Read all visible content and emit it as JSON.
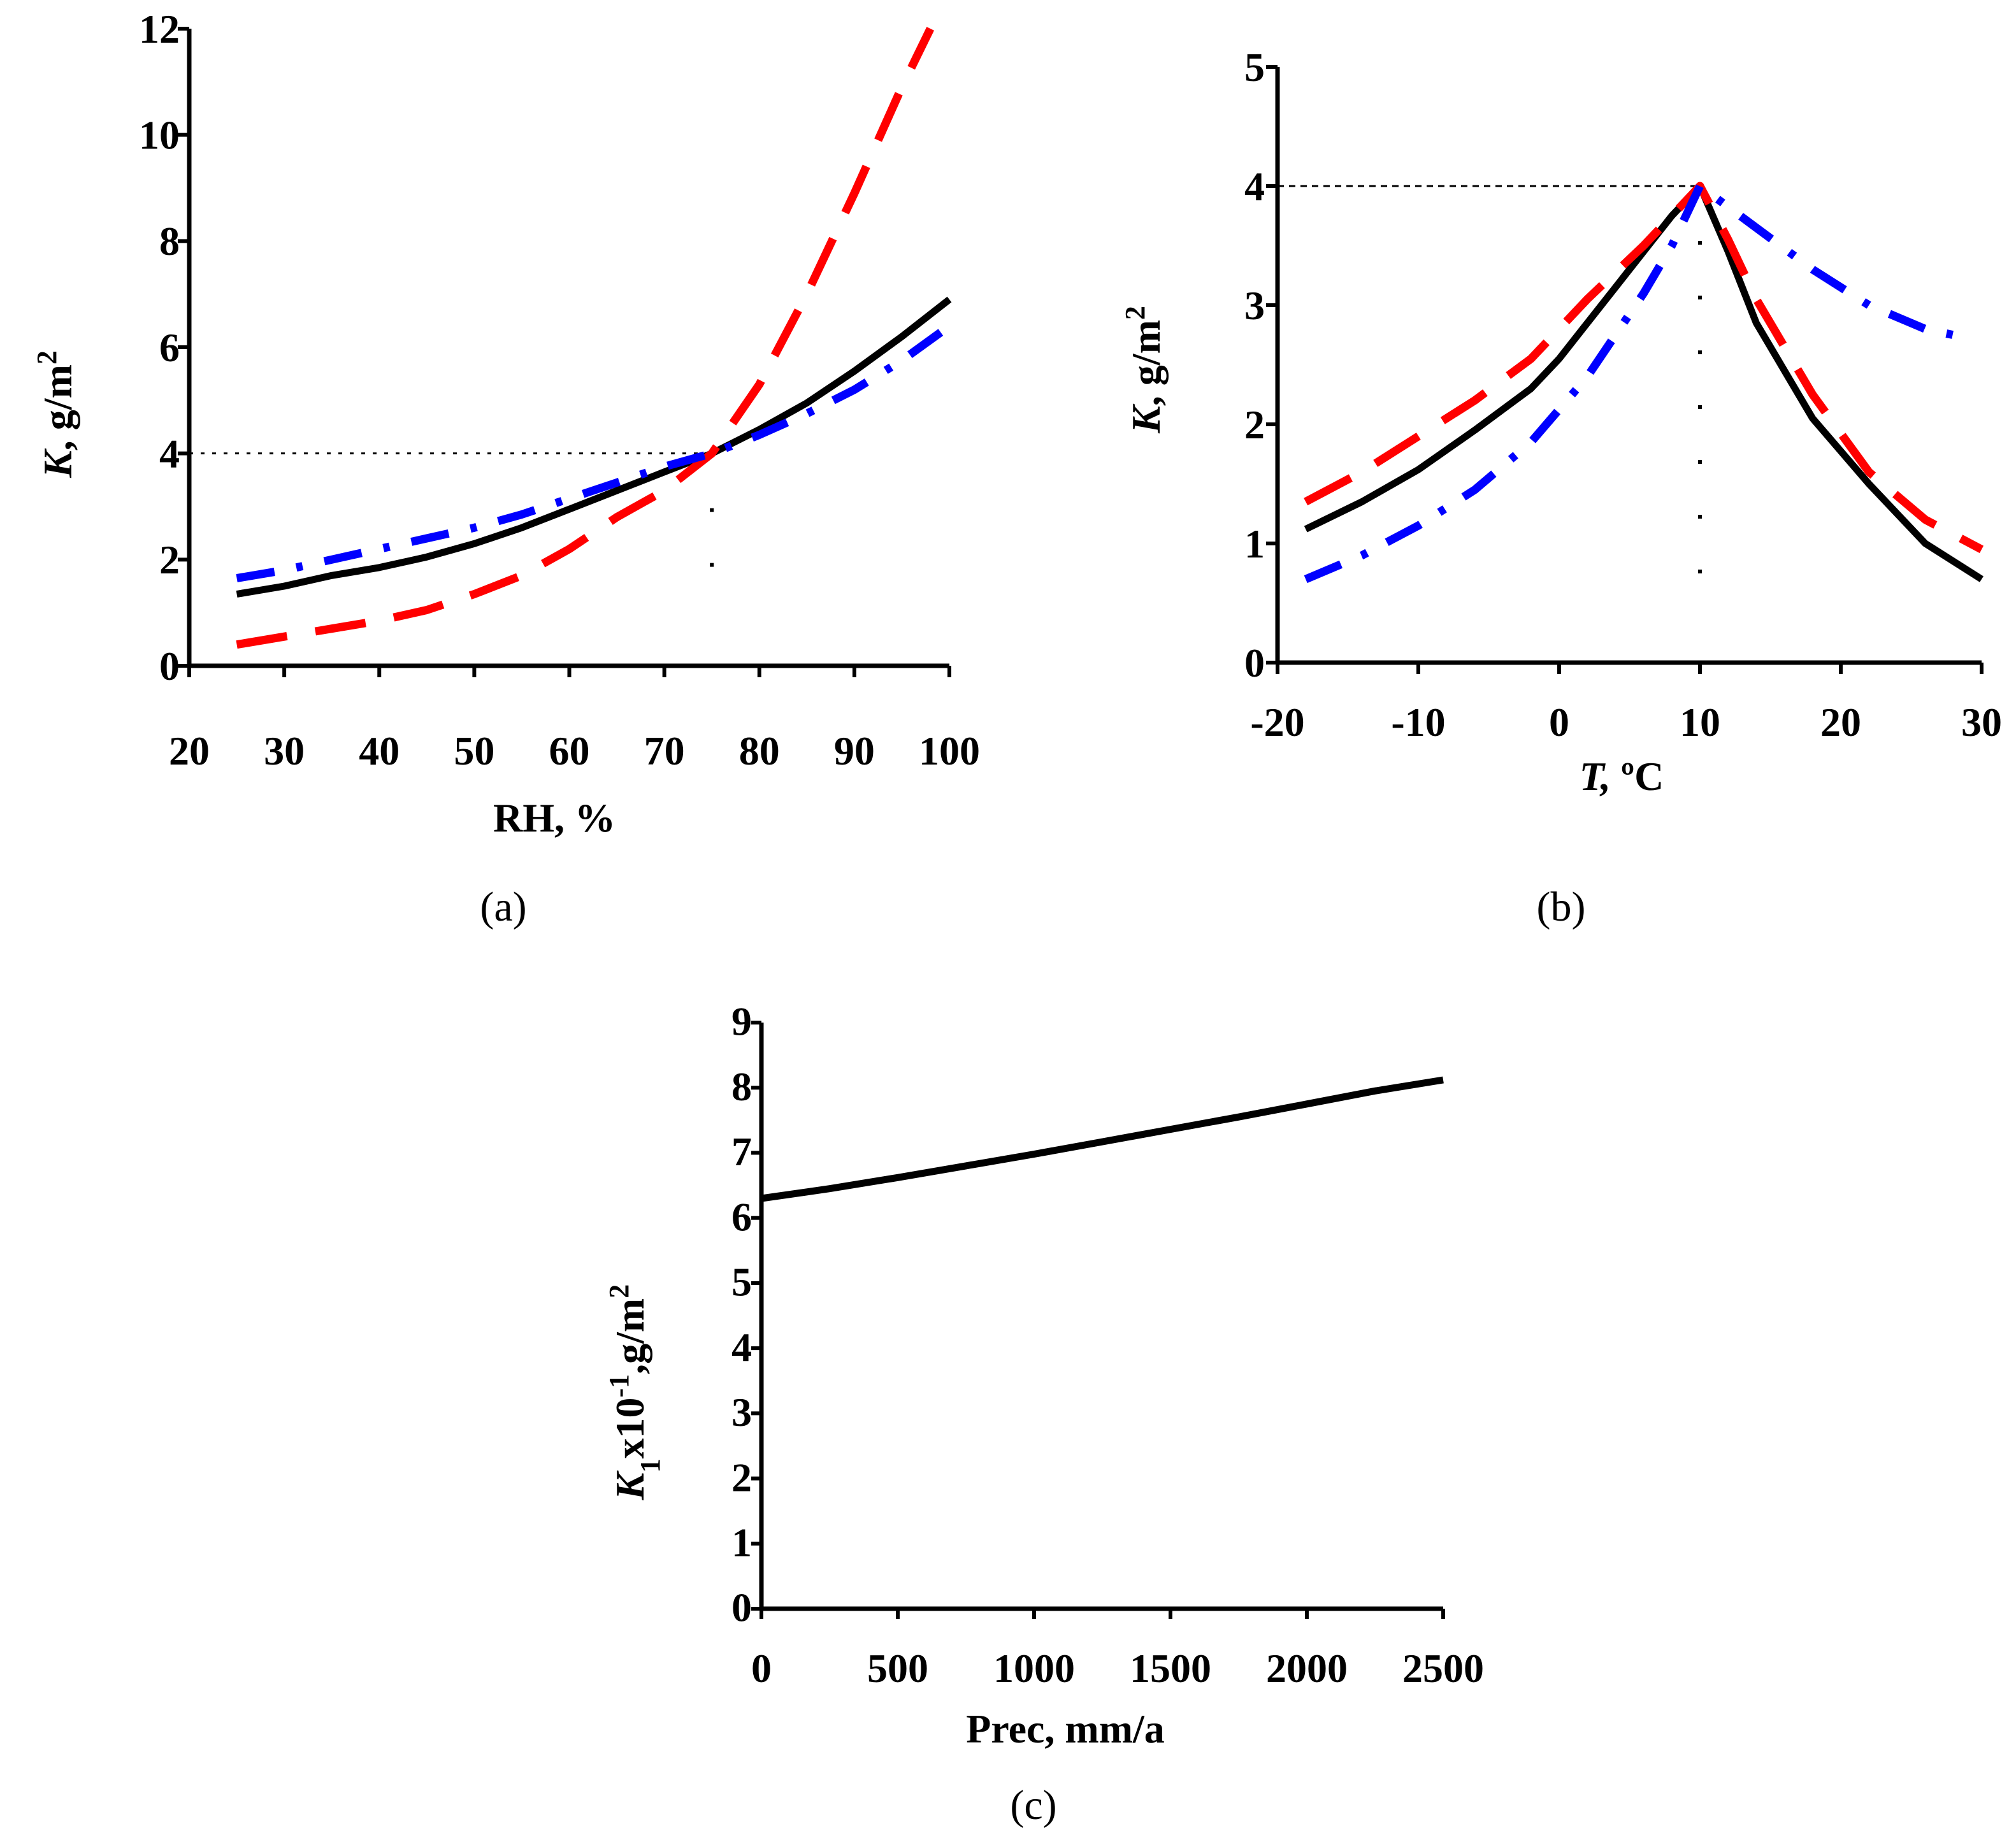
{
  "chart_data": [
    {
      "id": "a",
      "type": "line",
      "panel_label": "(a)",
      "xlabel": "RH, %",
      "ylabel_var": "K",
      "ylabel_unit": ", g/m",
      "ylabel_sup": "2",
      "xlim": [
        20,
        100
      ],
      "ylim": [
        0,
        12
      ],
      "xticks": [
        "20",
        "30",
        "40",
        "50",
        "60",
        "70",
        "80",
        "90",
        "100"
      ],
      "yticks": [
        "0",
        "2",
        "4",
        "6",
        "8",
        "10",
        "12"
      ],
      "reference_value": 4,
      "reference_x": 75,
      "series": [
        {
          "name": "black",
          "color": "#000000",
          "dash": "solid",
          "x": [
            25,
            30,
            35,
            40,
            45,
            50,
            55,
            60,
            65,
            70,
            75,
            80,
            85,
            90,
            95,
            100
          ],
          "y": [
            1.35,
            1.5,
            1.7,
            1.85,
            2.05,
            2.3,
            2.6,
            2.95,
            3.3,
            3.65,
            4.0,
            4.45,
            4.95,
            5.55,
            6.2,
            6.9
          ]
        },
        {
          "name": "red",
          "color": "#ff0000",
          "dash": "dash",
          "x": [
            25,
            30,
            35,
            40,
            45,
            50,
            55,
            60,
            65,
            70,
            75,
            80,
            85,
            90,
            95,
            98
          ],
          "y": [
            0.4,
            0.55,
            0.7,
            0.85,
            1.05,
            1.35,
            1.7,
            2.2,
            2.8,
            3.3,
            4.0,
            5.3,
            7.0,
            8.9,
            10.9,
            12.0
          ]
        },
        {
          "name": "blue",
          "color": "#0000ff",
          "dash": "dashdot",
          "x": [
            25,
            30,
            35,
            40,
            45,
            50,
            55,
            60,
            65,
            70,
            75,
            80,
            85,
            90,
            95,
            100
          ],
          "y": [
            1.65,
            1.8,
            2.0,
            2.2,
            2.4,
            2.6,
            2.85,
            3.15,
            3.45,
            3.75,
            4.0,
            4.35,
            4.75,
            5.2,
            5.75,
            6.4
          ]
        }
      ]
    },
    {
      "id": "b",
      "type": "line",
      "panel_label": "(b)",
      "xlabel_var": "T,",
      "xlabel_unit": " ºC",
      "ylabel_var": "K",
      "ylabel_unit": ", g/m",
      "ylabel_sup": "2",
      "xlim": [
        -20,
        30
      ],
      "ylim": [
        0,
        5
      ],
      "xticks": [
        "-20",
        "-10",
        "0",
        "10",
        "20",
        "30"
      ],
      "yticks": [
        "0",
        "1",
        "2",
        "3",
        "4",
        "5"
      ],
      "reference_value": 4,
      "reference_x": 10,
      "series": [
        {
          "name": "black",
          "color": "#000000",
          "dash": "solid",
          "x": [
            -18,
            -14,
            -10,
            -6,
            -2,
            0,
            2,
            4,
            6,
            8,
            10,
            12,
            14,
            18,
            22,
            26,
            30
          ],
          "y": [
            1.12,
            1.35,
            1.62,
            1.95,
            2.3,
            2.55,
            2.85,
            3.15,
            3.45,
            3.75,
            4.0,
            3.45,
            2.85,
            2.05,
            1.5,
            1.0,
            0.7
          ]
        },
        {
          "name": "red",
          "color": "#ff0000",
          "dash": "dash",
          "x": [
            -18,
            -14,
            -10,
            -6,
            -2,
            2,
            6,
            10,
            12,
            14,
            18,
            22,
            26,
            30
          ],
          "y": [
            1.35,
            1.6,
            1.9,
            2.2,
            2.55,
            3.05,
            3.5,
            4.0,
            3.55,
            3.05,
            2.25,
            1.6,
            1.2,
            0.95
          ]
        },
        {
          "name": "blue",
          "color": "#0000ff",
          "dash": "dashdot",
          "x": [
            -18,
            -14,
            -10,
            -6,
            -2,
            2,
            6,
            8,
            10,
            14,
            18,
            22,
            26,
            28
          ],
          "y": [
            0.7,
            0.9,
            1.15,
            1.45,
            1.85,
            2.4,
            3.1,
            3.5,
            4.0,
            3.65,
            3.3,
            3.0,
            2.8,
            2.75
          ]
        }
      ]
    },
    {
      "id": "c",
      "type": "line",
      "panel_label": "(c)",
      "xlabel": "Prec, mm/a",
      "ylabel_var": "K",
      "ylabel_sub": "1",
      "ylabel_mid": "x10",
      "ylabel_sup1": "-1",
      "ylabel_unit": ",g/m",
      "ylabel_sup2": "2",
      "xlim": [
        0,
        2500
      ],
      "ylim": [
        0,
        9
      ],
      "xticks": [
        "0",
        "500",
        "1000",
        "1500",
        "2000",
        "2500"
      ],
      "yticks": [
        "0",
        "1",
        "2",
        "3",
        "4",
        "5",
        "6",
        "7",
        "8",
        "9"
      ],
      "series": [
        {
          "name": "black",
          "color": "#000000",
          "dash": "solid",
          "x": [
            0,
            250,
            500,
            750,
            1000,
            1250,
            1500,
            1750,
            2000,
            2250,
            2500
          ],
          "y": [
            6.3,
            6.45,
            6.62,
            6.8,
            6.98,
            7.17,
            7.36,
            7.55,
            7.75,
            7.95,
            8.12
          ]
        }
      ]
    }
  ]
}
